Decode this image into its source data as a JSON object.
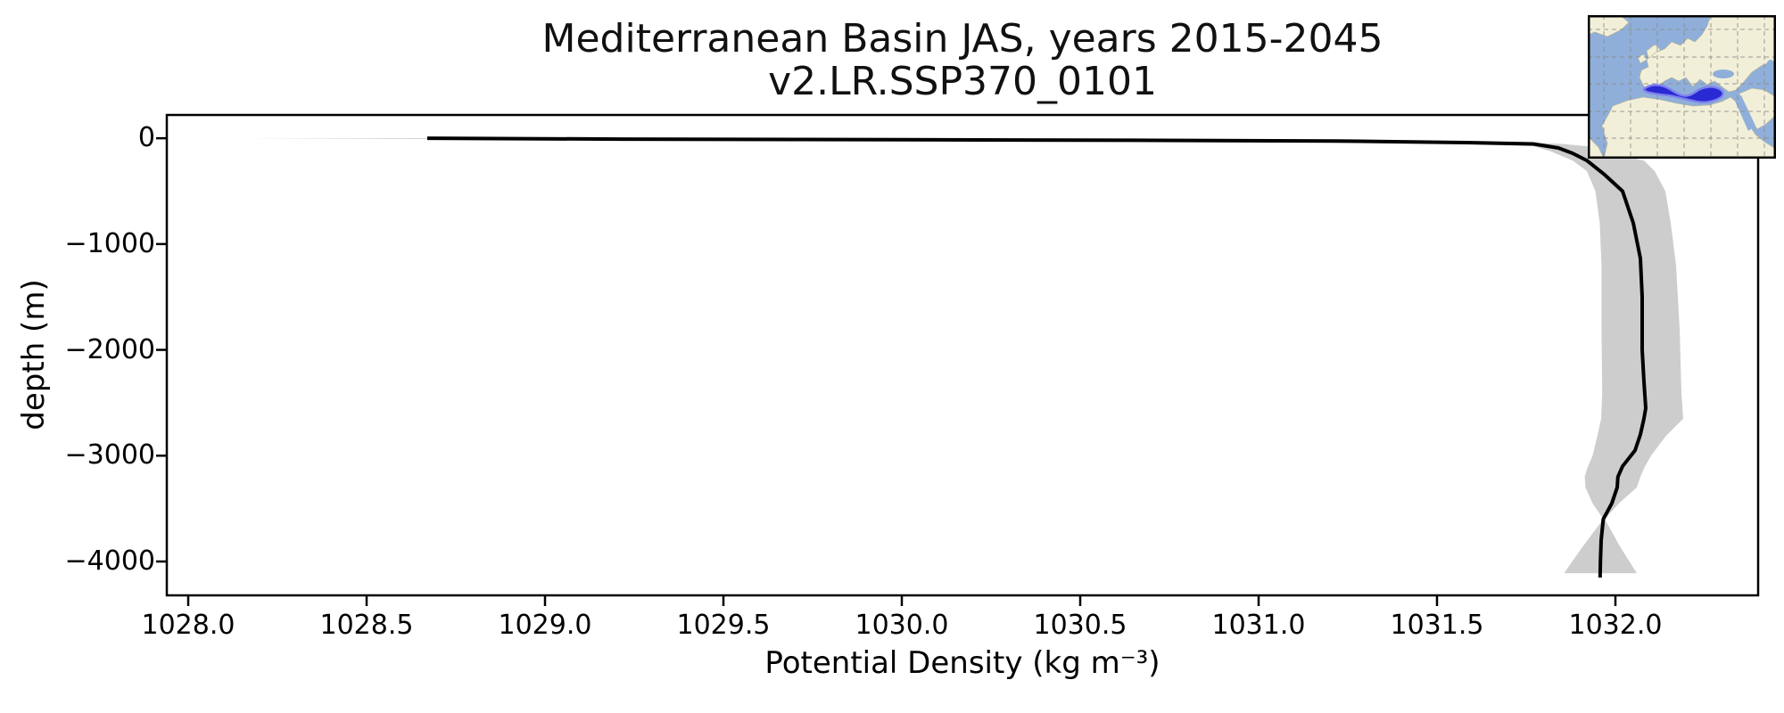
{
  "figure": {
    "title_line1": "Mediterranean Basin JAS, years 2015-2045",
    "title_line2": "v2.LR.SSP370_0101",
    "xlabel": "Potential Density (kg m⁻³)",
    "ylabel": "depth (m)"
  },
  "colors": {
    "background": "#ffffff",
    "mean_line": "#000000",
    "band": "#cdcdcd",
    "axes": "#000000",
    "text": "#111111"
  },
  "inset_map": {
    "region_label": "Mediterranean Basin locator map",
    "highlight_region": "Mediterranean Sea",
    "colors": {
      "ocean": "#8fafda",
      "land": "#f2efd9",
      "coast": "#b7b28f",
      "graticule": "#8a8a8a",
      "highlight_fill": "#2a2ad4",
      "highlight_edge": "#7f82ee",
      "border": "#000000"
    }
  },
  "chart_data": {
    "type": "line",
    "title": "Mediterranean Basin JAS, years 2015-2045",
    "subtitle": "v2.LR.SSP370_0101",
    "xlabel": "Potential Density (kg m⁻³)",
    "ylabel": "depth (m)",
    "grid": false,
    "legend": null,
    "xlim": [
      1027.94,
      1032.4
    ],
    "ylim_depth_m": [
      220,
      -4320
    ],
    "x_ticks": {
      "values": [
        1028.0,
        1028.5,
        1029.0,
        1029.5,
        1030.0,
        1030.5,
        1031.0,
        1031.5,
        1032.0
      ],
      "labels": [
        "1028.0",
        "1028.5",
        "1029.0",
        "1029.5",
        "1030.0",
        "1030.5",
        "1031.0",
        "1031.5",
        "1032.0"
      ]
    },
    "y_ticks": {
      "values": [
        0,
        -1000,
        -2000,
        -3000,
        -4000
      ],
      "labels": [
        "0",
        "−1000",
        "−2000",
        "−3000",
        "−4000"
      ]
    },
    "series": [
      {
        "name": "mean potential density profile",
        "style": "line",
        "color": "#000000",
        "depth_m": [
          0,
          -8,
          -12,
          -16,
          -20,
          -26,
          -41,
          -54,
          -92,
          -142,
          -210,
          -345,
          -500,
          -800,
          -1135,
          -1500,
          -2000,
          -2300,
          -2550,
          -2650,
          -2800,
          -2950,
          -3100,
          -3200,
          -3300,
          -3450,
          -3600,
          -3800,
          -4000,
          -4152
        ],
        "density": [
          1028.67,
          1029.22,
          1029.72,
          1030.22,
          1030.72,
          1031.22,
          1031.58,
          1031.77,
          1031.84,
          1031.88,
          1031.92,
          1031.97,
          1032.02,
          1032.05,
          1032.07,
          1032.075,
          1032.075,
          1032.08,
          1032.085,
          1032.08,
          1032.07,
          1032.055,
          1032.02,
          1032.007,
          1032.005,
          1031.99,
          1031.966,
          1031.96,
          1031.958,
          1031.957
        ]
      },
      {
        "name": "spread envelope (min-max / ±1σ band)",
        "style": "band",
        "color": "#cdcdcd",
        "depth_m": [
          0,
          -8,
          -12,
          -16,
          -20,
          -26,
          -41,
          -54,
          -75,
          -125,
          -210,
          -311,
          -500,
          -800,
          -1200,
          -1800,
          -2400,
          -2650,
          -2820,
          -3000,
          -3120,
          -3200,
          -3300,
          -3450,
          -3600,
          -3870,
          -4110
        ],
        "lower": [
          1028.15,
          1028.72,
          1029.22,
          1029.72,
          1030.22,
          1030.72,
          1031.2,
          1031.55,
          1031.77,
          1031.82,
          1031.88,
          1031.92,
          1031.944,
          1031.956,
          1031.961,
          1031.961,
          1031.963,
          1031.96,
          1031.949,
          1031.936,
          1031.921,
          1031.914,
          1031.916,
          1031.936,
          1031.966,
          1031.906,
          1031.856
        ],
        "upper": [
          1029.11,
          1029.7,
          1030.2,
          1030.7,
          1031.1,
          1031.5,
          1031.75,
          1031.85,
          1031.92,
          1031.97,
          1032.08,
          1032.11,
          1032.14,
          1032.155,
          1032.17,
          1032.18,
          1032.185,
          1032.19,
          1032.14,
          1032.1,
          1032.08,
          1032.07,
          1032.06,
          1032.01,
          1031.97,
          1032.015,
          1032.06
        ]
      }
    ]
  }
}
